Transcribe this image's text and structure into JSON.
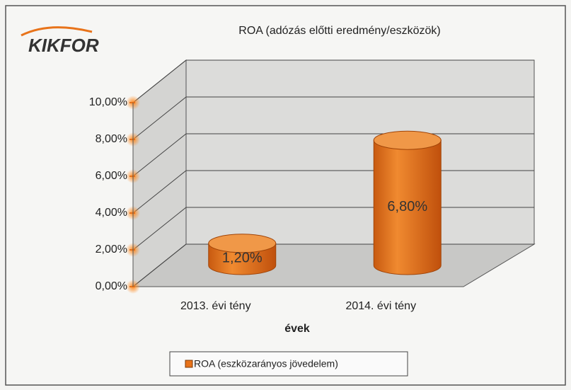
{
  "logo": "KIKFOR",
  "chart_data": {
    "type": "bar",
    "title": "ROA (adózás előtti eredmény/eszközök)",
    "categories": [
      "2013. évi tény",
      "2014. évi tény"
    ],
    "series": [
      {
        "name": "ROA (eszközarányos jövedelem)",
        "color": "#e8731a",
        "values": [
          1.2,
          6.8
        ],
        "value_labels": [
          "1,20%",
          "6,80%"
        ]
      }
    ],
    "xlabel": "évek",
    "ylim": [
      0,
      10
    ],
    "yticks": [
      {
        "value": 0,
        "label": "0,00%"
      },
      {
        "value": 2,
        "label": "2,00%"
      },
      {
        "value": 4,
        "label": "4,00%"
      },
      {
        "value": 6,
        "label": "6,00%"
      },
      {
        "value": 8,
        "label": "8,00%"
      },
      {
        "value": 10,
        "label": "10,00%"
      }
    ],
    "grid": true,
    "legend": "bottom"
  }
}
